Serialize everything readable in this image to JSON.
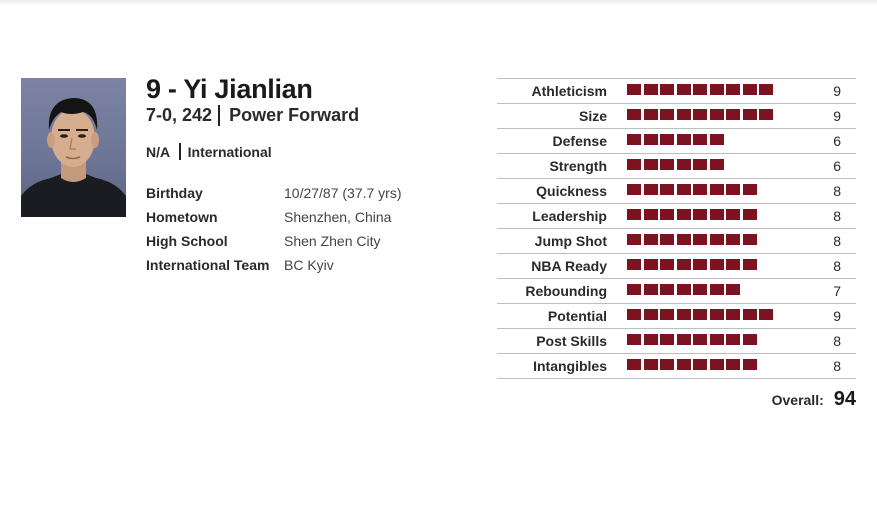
{
  "player": {
    "name": "9 - Yi Jianlian",
    "height_weight": "7-0, 242",
    "position": "Power Forward",
    "college": "N/A",
    "class": "International",
    "details": [
      {
        "label": "Birthday",
        "value": "10/27/87 (37.7 yrs)"
      },
      {
        "label": "Hometown",
        "value": "Shenzhen, China"
      },
      {
        "label": "High School",
        "value": "Shen Zhen City"
      },
      {
        "label": "International Team",
        "value": "BC Kyiv"
      }
    ]
  },
  "ratings": [
    {
      "label": "Athleticism",
      "value": 9
    },
    {
      "label": "Size",
      "value": 9
    },
    {
      "label": "Defense",
      "value": 6
    },
    {
      "label": "Strength",
      "value": 6
    },
    {
      "label": "Quickness",
      "value": 8
    },
    {
      "label": "Leadership",
      "value": 8
    },
    {
      "label": "Jump Shot",
      "value": 8
    },
    {
      "label": "NBA Ready",
      "value": 8
    },
    {
      "label": "Rebounding",
      "value": 7
    },
    {
      "label": "Potential",
      "value": 9
    },
    {
      "label": "Post Skills",
      "value": 8
    },
    {
      "label": "Intangibles",
      "value": 8
    }
  ],
  "overall": {
    "label": "Overall:",
    "value": "94"
  },
  "colors": {
    "bar": "#7d1220"
  }
}
